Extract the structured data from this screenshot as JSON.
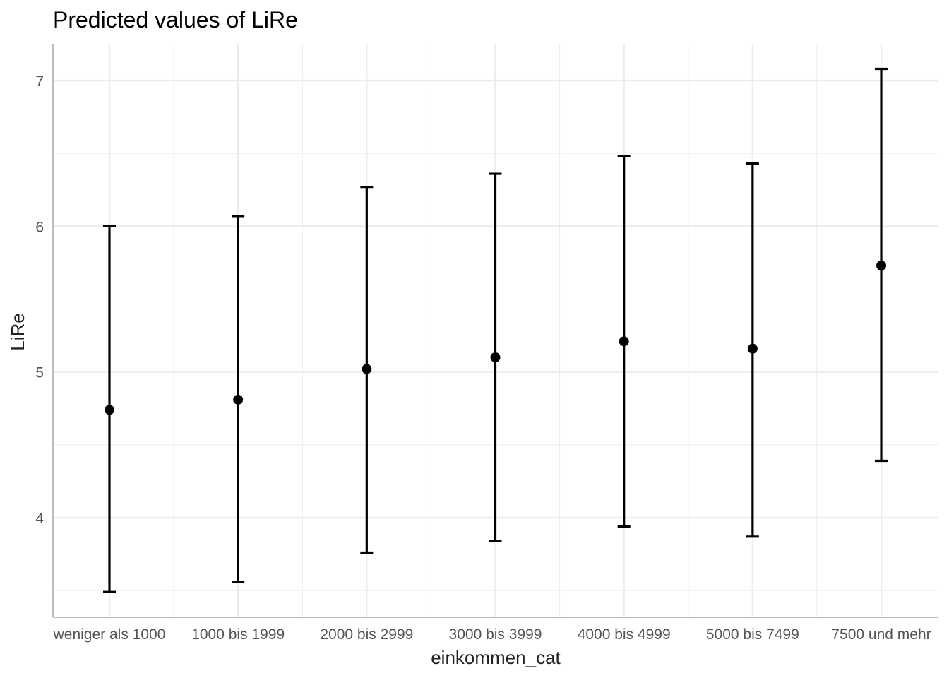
{
  "chart_data": {
    "type": "scatter",
    "title": "Predicted values of LiRe",
    "xlabel": "einkommen_cat",
    "ylabel": "LiRe",
    "categories": [
      "weniger als 1000",
      "1000 bis 1999",
      "2000 bis 2999",
      "3000 bis 3999",
      "4000 bis 4999",
      "5000 bis 7499",
      "7500 und mehr"
    ],
    "series": [
      {
        "values": [
          4.74,
          4.81,
          5.02,
          5.1,
          5.21,
          5.16,
          5.73
        ],
        "ci_low": [
          3.49,
          3.56,
          3.76,
          3.84,
          3.94,
          3.87,
          4.39
        ],
        "ci_high": [
          6.0,
          6.07,
          6.27,
          6.36,
          6.48,
          6.43,
          7.08
        ]
      }
    ],
    "ylim": [
      3.3,
      7.25
    ],
    "yticks": [
      4,
      5,
      6,
      7
    ],
    "ytick_labels": [
      "4",
      "5",
      "6",
      "7"
    ],
    "grid": true,
    "colors": {
      "point": "#000000",
      "grid": "#ebebeb",
      "axis": "#bdbdbd"
    }
  }
}
